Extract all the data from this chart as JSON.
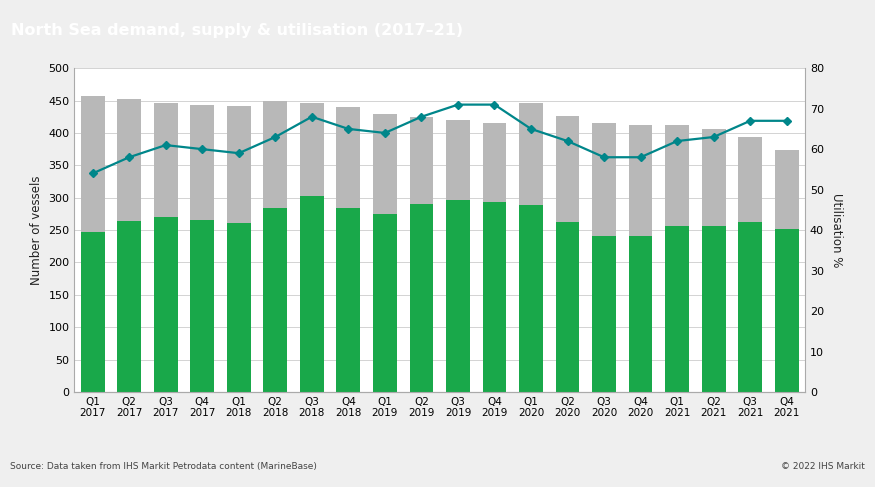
{
  "title": "North Sea demand, supply & utilisation (2017–21)",
  "title_bg": "#636363",
  "title_color": "#ffffff",
  "ylabel_left": "Number of vessels",
  "ylabel_right": "Utilisation %",
  "source_text": "Source: Data taken from IHS Markit Petrodata content (MarineBase)",
  "copyright_text": "© 2022 IHS Markit",
  "categories": [
    "Q1\n2017",
    "Q2\n2017",
    "Q3\n2017",
    "Q4\n2017",
    "Q1\n2018",
    "Q2\n2018",
    "Q3\n2018",
    "Q4\n2018",
    "Q1\n2019",
    "Q2\n2019",
    "Q3\n2019",
    "Q4\n2019",
    "Q1\n2020",
    "Q2\n2020",
    "Q3\n2020",
    "Q4\n2020",
    "Q1\n2021",
    "Q2\n2021",
    "Q3\n2021",
    "Q4\n2021"
  ],
  "demand": [
    247,
    264,
    270,
    265,
    261,
    284,
    302,
    284,
    275,
    291,
    297,
    294,
    288,
    262,
    241,
    241,
    257,
    257,
    263,
    251
  ],
  "supply": [
    457,
    453,
    446,
    443,
    441,
    449,
    447,
    440,
    430,
    425,
    420,
    415,
    446,
    426,
    415,
    413,
    412,
    406,
    394,
    373
  ],
  "utilisation": [
    54,
    58,
    61,
    60,
    59,
    63,
    68,
    65,
    64,
    68,
    71,
    71,
    65,
    62,
    58,
    58,
    62,
    63,
    67,
    67
  ],
  "demand_color": "#19a84a",
  "supply_color": "#b8b8b8",
  "utilisation_color": "#00868a",
  "ylim_left": [
    0,
    500
  ],
  "ylim_right": [
    0,
    80
  ],
  "yticks_left": [
    0,
    50,
    100,
    150,
    200,
    250,
    300,
    350,
    400,
    450,
    500
  ],
  "yticks_right": [
    0,
    10,
    20,
    30,
    40,
    50,
    60,
    70,
    80
  ],
  "background_color": "#efefef",
  "plot_bg_color": "#ffffff",
  "grid_color": "#cccccc",
  "bar_width": 0.65
}
